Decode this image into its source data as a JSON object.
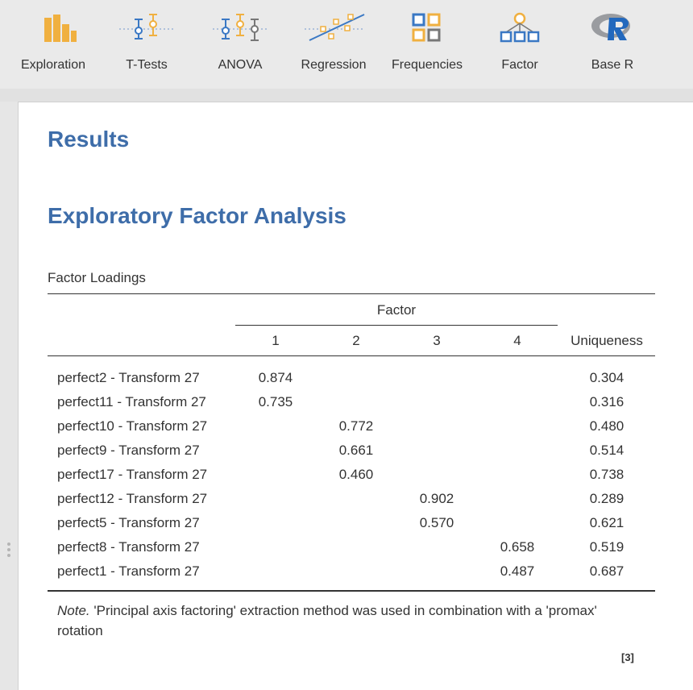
{
  "toolbar": {
    "items": [
      {
        "label": "Exploration",
        "icon": "bar-chart-icon"
      },
      {
        "label": "T-Tests",
        "icon": "t-test-icon"
      },
      {
        "label": "ANOVA",
        "icon": "anova-icon"
      },
      {
        "label": "Regression",
        "icon": "regression-icon"
      },
      {
        "label": "Frequencies",
        "icon": "frequencies-icon"
      },
      {
        "label": "Factor",
        "icon": "factor-icon"
      },
      {
        "label": "Base R",
        "icon": "r-logo-icon"
      }
    ]
  },
  "colors": {
    "accent": "#3e6da9",
    "icon_orange": "#f0b040",
    "icon_blue": "#3a78c4"
  },
  "results": {
    "title": "Results",
    "analysis_title": "Exploratory Factor Analysis",
    "table": {
      "caption": "Factor Loadings",
      "factor_header": "Factor",
      "columns": [
        "1",
        "2",
        "3",
        "4"
      ],
      "uniqueness_header": "Uniqueness",
      "rows": [
        {
          "name": "perfect2 - Transform 27",
          "f1": "0.874",
          "f2": "",
          "f3": "",
          "f4": "",
          "uniqueness": "0.304"
        },
        {
          "name": "perfect11 - Transform 27",
          "f1": "0.735",
          "f2": "",
          "f3": "",
          "f4": "",
          "uniqueness": "0.316"
        },
        {
          "name": "perfect10 - Transform 27",
          "f1": "",
          "f2": "0.772",
          "f3": "",
          "f4": "",
          "uniqueness": "0.480"
        },
        {
          "name": "perfect9 - Transform 27",
          "f1": "",
          "f2": "0.661",
          "f3": "",
          "f4": "",
          "uniqueness": "0.514"
        },
        {
          "name": "perfect17 - Transform 27",
          "f1": "",
          "f2": "0.460",
          "f3": "",
          "f4": "",
          "uniqueness": "0.738"
        },
        {
          "name": "perfect12 - Transform 27",
          "f1": "",
          "f2": "",
          "f3": "0.902",
          "f4": "",
          "uniqueness": "0.289"
        },
        {
          "name": "perfect5 - Transform 27",
          "f1": "",
          "f2": "",
          "f3": "0.570",
          "f4": "",
          "uniqueness": "0.621"
        },
        {
          "name": "perfect8 - Transform 27",
          "f1": "",
          "f2": "",
          "f3": "",
          "f4": "0.658",
          "uniqueness": "0.519"
        },
        {
          "name": "perfect1 - Transform 27",
          "f1": "",
          "f2": "",
          "f3": "",
          "f4": "0.487",
          "uniqueness": "0.687"
        }
      ],
      "note_label": "Note.",
      "note_text": " 'Principal axis factoring' extraction method was used in combination with a 'promax' rotation",
      "reference": "[3]"
    }
  }
}
